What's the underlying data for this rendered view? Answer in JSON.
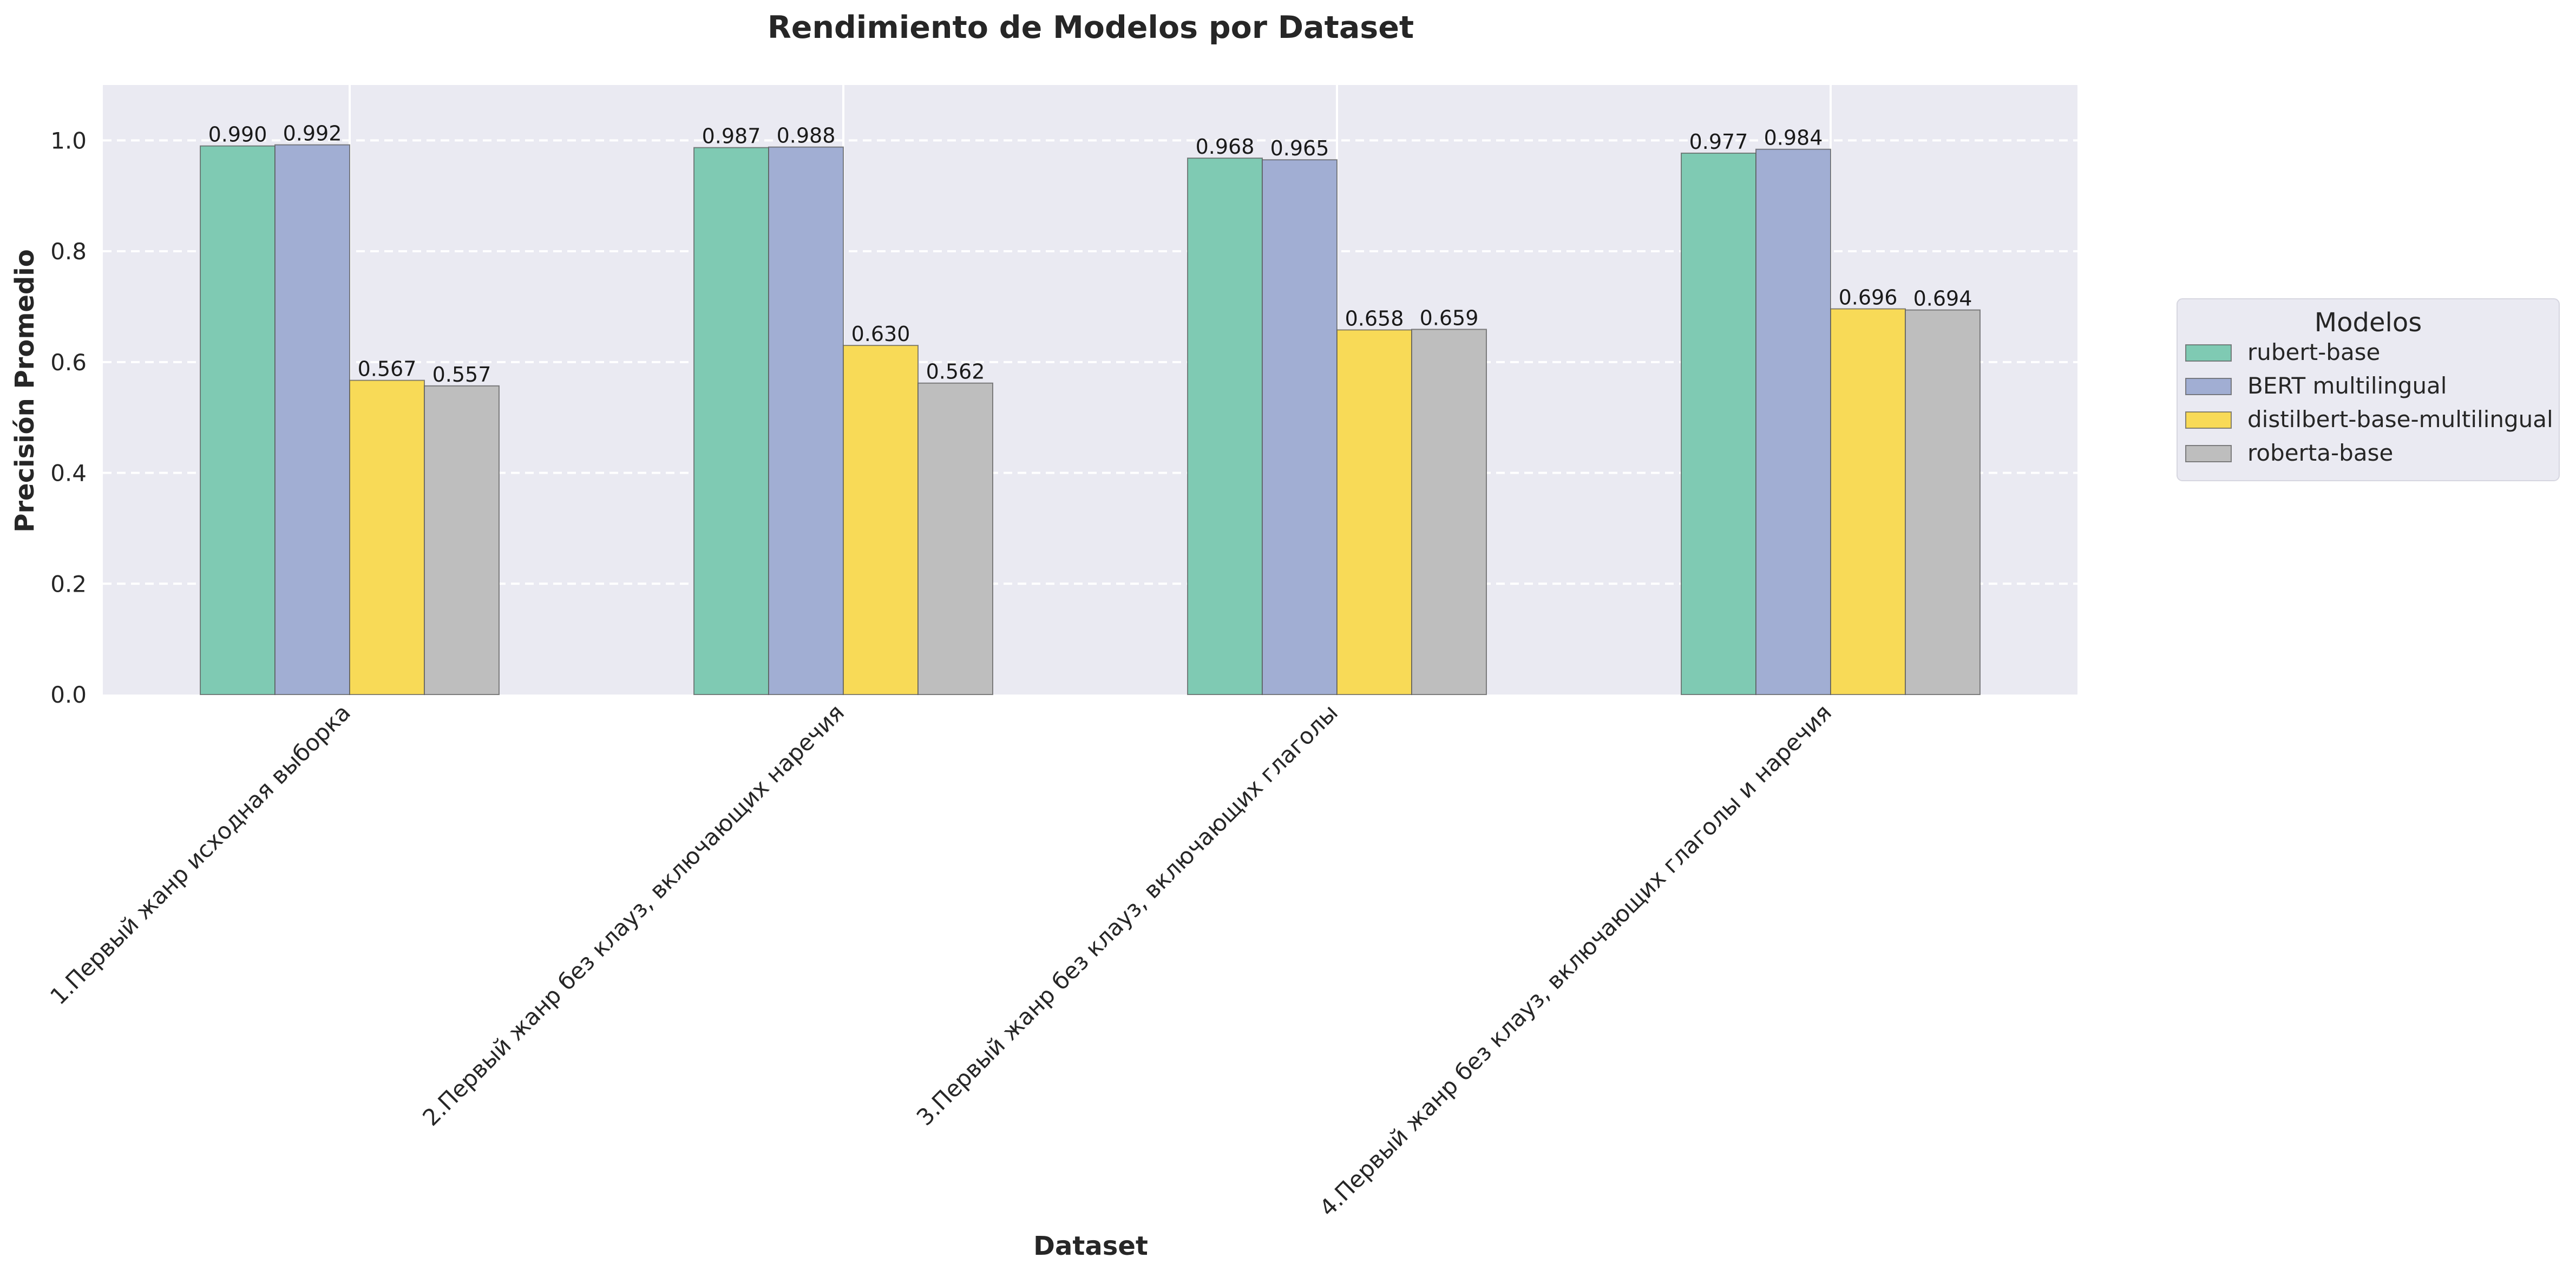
{
  "chart_data": {
    "type": "bar",
    "title": "Rendimiento de Modelos por Dataset",
    "xlabel": "Dataset",
    "ylabel": "Precisión Promedio",
    "ylim": [
      0,
      1.1
    ],
    "yticks": [
      "0.0",
      "0.2",
      "0.4",
      "0.6",
      "0.8",
      "1.0"
    ],
    "grid": true,
    "legend_title": "Modelos",
    "legend_position": "right",
    "categories": [
      "1.Первый жанр исходная выборка",
      "2.Первый жанр без клауз, включающих наречия",
      "3.Первый жанр без клауз, включающих глаголы",
      "4.Первый жанр без клауз, включающих глаголы и наречия"
    ],
    "series": [
      {
        "name": "rubert-base",
        "color": "#7fcab3",
        "values": [
          0.99,
          0.987,
          0.968,
          0.977
        ],
        "labels": [
          "0.990",
          "0.987",
          "0.968",
          "0.977"
        ]
      },
      {
        "name": "BERT multilingual",
        "color": "#a1aed3",
        "values": [
          0.992,
          0.988,
          0.965,
          0.984
        ],
        "labels": [
          "0.992",
          "0.988",
          "0.965",
          "0.984"
        ]
      },
      {
        "name": "distilbert-base-multilingual",
        "color": "#f8da57",
        "values": [
          0.567,
          0.63,
          0.658,
          0.696
        ],
        "labels": [
          "0.567",
          "0.630",
          "0.658",
          "0.696"
        ]
      },
      {
        "name": "roberta-base",
        "color": "#bebebe",
        "values": [
          0.557,
          0.562,
          0.659,
          0.694
        ],
        "labels": [
          "0.557",
          "0.562",
          "0.659",
          "0.694"
        ]
      }
    ]
  }
}
